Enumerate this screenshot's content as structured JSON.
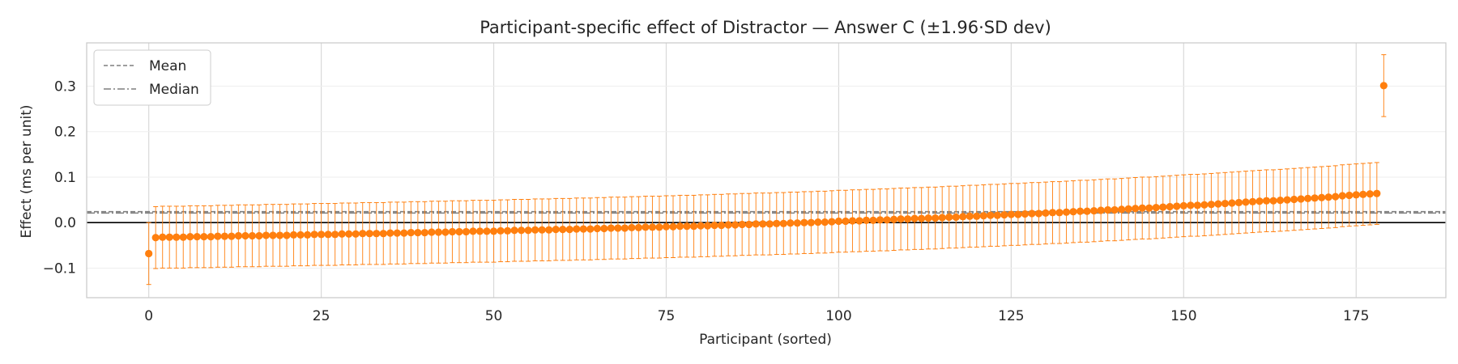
{
  "chart_data": {
    "type": "scatter",
    "title": "Participant-specific effect of Distractor — Answer C (±1.96·SD dev)",
    "xlabel": "Participant (sorted)",
    "ylabel": "Effect (ms per unit)",
    "xlim": [
      -9,
      188
    ],
    "ylim": [
      -0.165,
      0.395
    ],
    "x_ticks": [
      0,
      25,
      50,
      75,
      100,
      125,
      150,
      175
    ],
    "x_tick_labels": [
      "0",
      "25",
      "50",
      "75",
      "100",
      "125",
      "150",
      "175"
    ],
    "y_ticks": [
      -0.1,
      0.0,
      0.1,
      0.2,
      0.3
    ],
    "y_tick_labels": [
      "−0.1",
      "0.0",
      "0.1",
      "0.2",
      "0.3"
    ],
    "grid": true,
    "legend_position": "top-left",
    "n_participants": 180,
    "error_half_width": 0.068,
    "reference_lines": [
      {
        "name": "Mean",
        "value": 0.024,
        "style": "dashed"
      },
      {
        "name": "Median",
        "value": 0.021,
        "style": "dashdot"
      }
    ],
    "zero_line": 0.0,
    "colors": {
      "points": "#ff7f0e",
      "errorbars": "#ff7f0e",
      "mean": "#7f7f7f",
      "median": "#7f7f7f",
      "zero": "#000000",
      "grid": "#d9d9d9",
      "frame": "#cccccc"
    }
  },
  "legend": {
    "mean_label": "Mean",
    "median_label": "Median"
  }
}
